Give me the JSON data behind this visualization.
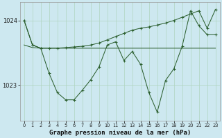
{
  "title": "Graphe pression niveau de la mer (hPa)",
  "background_color": "#cde8f0",
  "grid_color": "#b0d4c0",
  "line_color": "#2d6030",
  "hours": [
    0,
    1,
    2,
    3,
    4,
    5,
    6,
    7,
    8,
    9,
    10,
    11,
    12,
    13,
    14,
    15,
    16,
    17,
    18,
    19,
    20,
    21,
    22,
    23
  ],
  "series_rising": [
    1024.0,
    1023.62,
    1023.57,
    1023.57,
    1023.57,
    1023.58,
    1023.59,
    1023.6,
    1023.62,
    1023.65,
    1023.7,
    1023.75,
    1023.8,
    1023.85,
    1023.88,
    1023.9,
    1023.93,
    1023.96,
    1024.0,
    1024.05,
    1024.1,
    1024.15,
    1023.88,
    1024.17
  ],
  "series_wavy": [
    1024.0,
    1023.62,
    1023.57,
    1023.18,
    1022.88,
    1022.77,
    1022.77,
    1022.92,
    1023.08,
    1023.28,
    1023.62,
    1023.67,
    1023.38,
    1023.52,
    1023.32,
    1022.88,
    1022.58,
    1023.07,
    1023.25,
    1023.6,
    1024.15,
    1023.92,
    1023.78,
    1023.78
  ],
  "series_flat": [
    1023.62,
    1023.58,
    1023.57,
    1023.57,
    1023.57,
    1023.57,
    1023.57,
    1023.57,
    1023.57,
    1023.57,
    1023.57,
    1023.57,
    1023.57,
    1023.57,
    1023.57,
    1023.57,
    1023.57,
    1023.57,
    1023.57,
    1023.57,
    1023.57,
    1023.57,
    1023.57,
    1023.57
  ],
  "ylim": [
    1022.45,
    1024.28
  ],
  "yticks": [
    1023,
    1024
  ],
  "title_fontsize": 6.5
}
